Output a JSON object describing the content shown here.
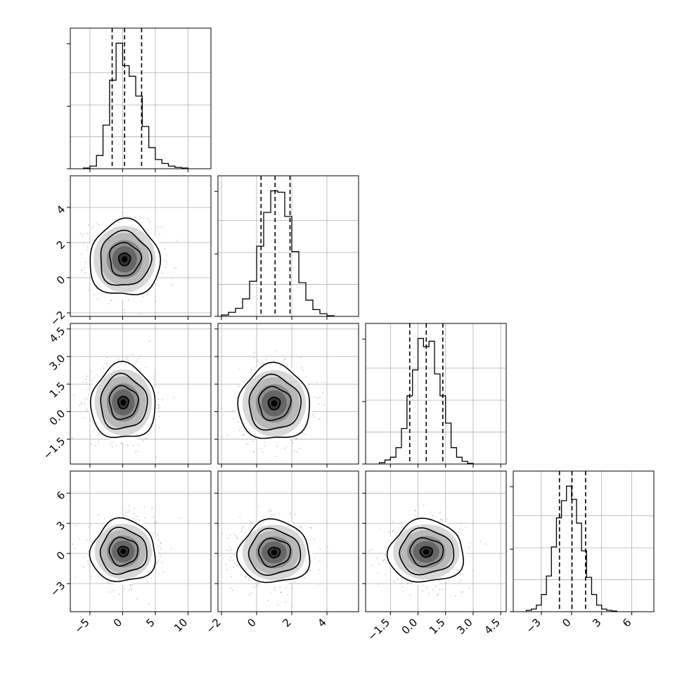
{
  "chart_data": {
    "type": "corner",
    "grid": true,
    "colors": {
      "hist": "#000000",
      "scatter": "#8c8c8c",
      "grid": "#b0b0b0",
      "quantile": "#000000",
      "contour": "#000000"
    },
    "params": [
      {
        "range": [
          -8,
          13.5
        ],
        "ticks": [
          -5,
          0,
          5,
          10
        ],
        "tick_labels": [
          "−5",
          "0",
          "5",
          "10"
        ],
        "quantiles": [
          -1.6,
          0.3,
          2.9
        ]
      },
      {
        "range": [
          -2.2,
          5.8
        ],
        "ticks": [
          -2,
          0,
          2,
          4
        ],
        "tick_labels": [
          "−2",
          "0",
          "2",
          "4"
        ],
        "quantiles": [
          0.25,
          1.05,
          1.9
        ]
      },
      {
        "range": [
          -2.85,
          4.8
        ],
        "ticks": [
          -1.5,
          0,
          1.5,
          3,
          4.5
        ],
        "tick_labels": [
          "−1.5",
          "0.0",
          "1.5",
          "3.0",
          "4.5"
        ],
        "quantiles": [
          -0.45,
          0.45,
          1.35
        ]
      },
      {
        "range": [
          -5.8,
          8.2
        ],
        "ticks": [
          -3,
          0,
          3,
          6
        ],
        "tick_labels": [
          "−3",
          "0",
          "3",
          "6"
        ],
        "quantiles": [
          -1.2,
          0.05,
          1.4
        ]
      }
    ],
    "histograms": [
      {
        "edges": [
          -6,
          -5,
          -4,
          -3,
          -2,
          -1,
          0,
          1,
          2,
          3,
          4,
          5,
          6,
          7,
          8,
          9,
          10
        ],
        "counts": [
          0.005,
          0.02,
          0.1,
          0.33,
          0.67,
          0.95,
          0.78,
          0.7,
          0.55,
          0.32,
          0.16,
          0.07,
          0.04,
          0.02,
          0.01,
          0.005
        ]
      },
      {
        "edges": [
          -2,
          -1.6,
          -1.2,
          -0.8,
          -0.4,
          0,
          0.4,
          0.8,
          1.2,
          1.6,
          2,
          2.4,
          2.8,
          3.2,
          3.6,
          4,
          4.4
        ],
        "counts": [
          0.01,
          0.03,
          0.06,
          0.13,
          0.26,
          0.52,
          0.77,
          0.93,
          0.92,
          0.74,
          0.48,
          0.25,
          0.12,
          0.05,
          0.02,
          0.005
        ]
      },
      {
        "edges": [
          -2.1,
          -1.8,
          -1.5,
          -1.2,
          -0.9,
          -0.6,
          -0.3,
          0,
          0.3,
          0.6,
          0.9,
          1.2,
          1.5,
          1.8,
          2.1,
          2.4,
          2.7,
          3.0
        ],
        "counts": [
          0.01,
          0.03,
          0.05,
          0.12,
          0.26,
          0.5,
          0.69,
          0.92,
          0.86,
          0.9,
          0.66,
          0.5,
          0.3,
          0.12,
          0.05,
          0.02,
          0.005
        ]
      },
      {
        "edges": [
          -4.5,
          -4,
          -3.5,
          -3,
          -2.5,
          -2,
          -1.5,
          -1,
          -0.5,
          0,
          0.5,
          1,
          1.5,
          2,
          2.5,
          3,
          3.5,
          4,
          4.5
        ],
        "counts": [
          0.01,
          0.02,
          0.05,
          0.13,
          0.27,
          0.49,
          0.71,
          0.84,
          0.95,
          0.85,
          0.67,
          0.46,
          0.26,
          0.13,
          0.05,
          0.02,
          0.01,
          0.005
        ]
      }
    ],
    "joint": [
      {
        "row": 1,
        "col": 0,
        "center": [
          0.3,
          1.05
        ],
        "sigma": [
          2.5,
          1.0
        ],
        "rho": -0.1
      },
      {
        "row": 2,
        "col": 0,
        "center": [
          0.1,
          0.5
        ],
        "sigma": [
          2.3,
          0.95
        ],
        "rho": -0.05
      },
      {
        "row": 2,
        "col": 1,
        "center": [
          1.0,
          0.45
        ],
        "sigma": [
          0.95,
          0.95
        ],
        "rho": 0.0
      },
      {
        "row": 3,
        "col": 0,
        "center": [
          0.1,
          0.2
        ],
        "sigma": [
          2.3,
          1.45
        ],
        "rho": 0.0
      },
      {
        "row": 3,
        "col": 1,
        "center": [
          1.0,
          0.1
        ],
        "sigma": [
          0.95,
          1.45
        ],
        "rho": 0.0
      },
      {
        "row": 3,
        "col": 2,
        "center": [
          0.45,
          0.15
        ],
        "sigma": [
          0.95,
          1.45
        ],
        "rho": 0.05
      }
    ]
  }
}
